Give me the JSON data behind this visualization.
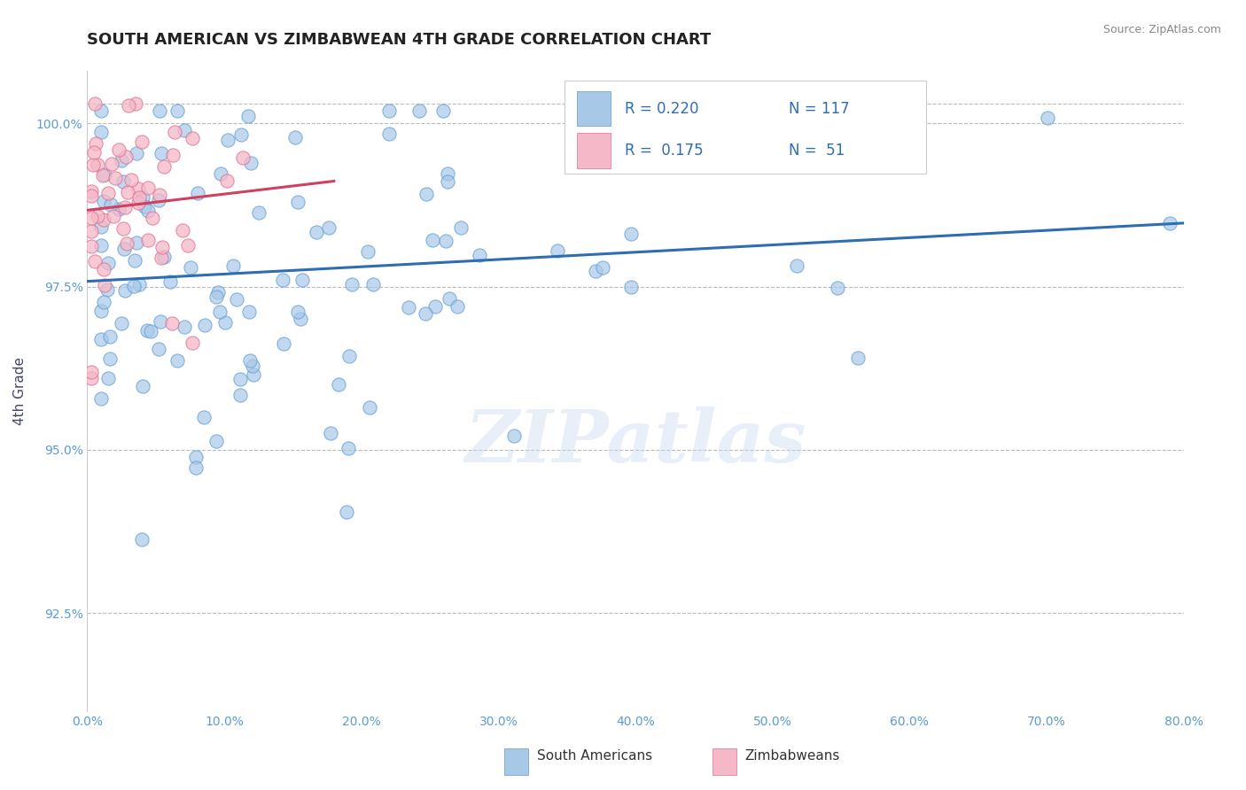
{
  "title": "SOUTH AMERICAN VS ZIMBABWEAN 4TH GRADE CORRELATION CHART",
  "source_text": "Source: ZipAtlas.com",
  "ylabel": "4th Grade",
  "x_min": 0.0,
  "x_max": 80.0,
  "y_min": 91.0,
  "y_max": 100.8,
  "yticks": [
    92.5,
    95.0,
    97.5,
    100.0
  ],
  "ytick_labels": [
    "92.5%",
    "95.0%",
    "97.5%",
    "100.0%"
  ],
  "xticks": [
    0.0,
    10.0,
    20.0,
    30.0,
    40.0,
    50.0,
    60.0,
    70.0,
    80.0
  ],
  "xtick_labels": [
    "0.0%",
    "10.0%",
    "20.0%",
    "30.0%",
    "40.0%",
    "50.0%",
    "60.0%",
    "70.0%",
    "80.0%"
  ],
  "blue_color": "#a8c8e8",
  "blue_edge_color": "#5b9bd5",
  "pink_color": "#f4b8c8",
  "pink_edge_color": "#e07090",
  "blue_line_color": "#2e6db4",
  "pink_line_color": "#d04060",
  "legend_blue_R": "0.220",
  "legend_blue_N": "117",
  "legend_pink_R": "0.175",
  "legend_pink_N": "51",
  "legend_label_blue": "South Americans",
  "legend_label_pink": "Zimbabweans",
  "watermark": "ZIPatlas",
  "title_color": "#222222",
  "tick_color": "#5b9bd5",
  "ylabel_color": "#444466",
  "grid_color": "#bbbbbb",
  "source_color": "#888888"
}
